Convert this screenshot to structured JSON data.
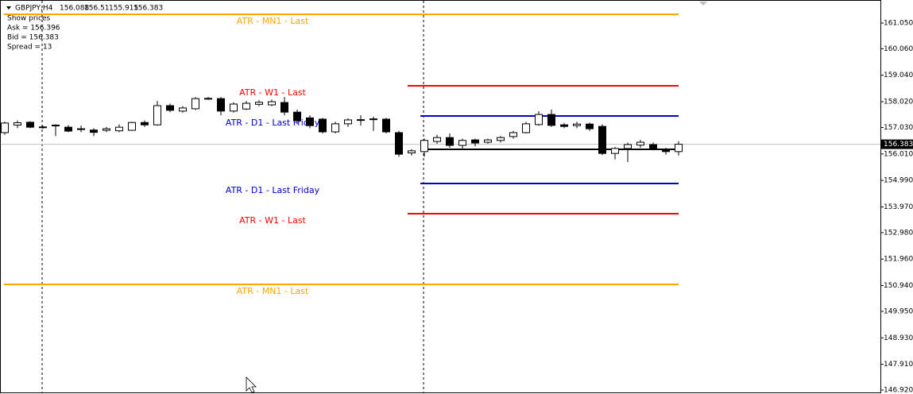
{
  "chart_data": {
    "type": "candlestick",
    "title": "GBPJPY,H4",
    "header_values": [
      156.088,
      156.51,
      155.915,
      156.383
    ],
    "info": [
      "Show prices",
      "Ask = 156.396",
      "Bid = 156.383",
      "Spread = 13"
    ],
    "categories": [
      null,
      null,
      null,
      null,
      null,
      null,
      null,
      null,
      null,
      null,
      null,
      null,
      null,
      null,
      null,
      null,
      null,
      null,
      null,
      null,
      null,
      null,
      null,
      null,
      null,
      null,
      null,
      null,
      null,
      null,
      null,
      null,
      null,
      null,
      null,
      null,
      null,
      null,
      null,
      null,
      null,
      null,
      null,
      null,
      null,
      null,
      null,
      null,
      null,
      null,
      null,
      null,
      null,
      null
    ],
    "open": [
      156.83,
      157.12,
      157.23,
      157.03,
      157.1,
      157.04,
      156.96,
      156.93,
      156.92,
      156.9,
      156.92,
      157.22,
      157.13,
      157.87,
      157.66,
      157.75,
      158.13,
      158.14,
      157.66,
      157.74,
      157.92,
      157.9,
      157.99,
      157.62,
      157.4,
      157.35,
      156.86,
      157.17,
      157.31,
      157.34,
      157.35,
      156.83,
      156.05,
      156.1,
      156.49,
      156.64,
      156.34,
      156.55,
      156.46,
      156.53,
      156.68,
      156.83,
      157.14,
      157.53,
      157.13,
      157.1,
      157.16,
      157.07,
      156.03,
      156.22,
      156.35,
      156.37,
      156.2,
      156.1
    ],
    "high": [
      157.25,
      157.3,
      157.27,
      157.1,
      157.15,
      157.12,
      157.1,
      157.0,
      157.05,
      157.15,
      157.25,
      157.3,
      158.05,
      157.95,
      157.85,
      158.2,
      158.2,
      158.2,
      158.0,
      158.05,
      158.08,
      158.1,
      158.2,
      157.72,
      157.5,
      157.4,
      157.25,
      157.38,
      157.5,
      157.45,
      157.4,
      156.9,
      156.2,
      156.6,
      156.75,
      156.8,
      156.6,
      156.6,
      156.6,
      156.7,
      156.9,
      157.25,
      157.65,
      157.72,
      157.2,
      157.25,
      157.22,
      157.15,
      156.28,
      156.45,
      156.55,
      156.45,
      156.25,
      156.5
    ],
    "low": [
      156.75,
      157.0,
      157.0,
      156.98,
      156.7,
      156.85,
      156.85,
      156.7,
      156.85,
      156.85,
      156.9,
      157.05,
      157.1,
      157.62,
      157.6,
      157.7,
      158.1,
      157.5,
      157.6,
      157.7,
      157.85,
      157.85,
      157.5,
      157.15,
      157.0,
      156.8,
      156.8,
      157.05,
      157.1,
      156.9,
      156.8,
      155.9,
      155.95,
      155.9,
      156.4,
      156.25,
      156.2,
      156.3,
      156.4,
      156.45,
      156.6,
      156.8,
      157.1,
      157.05,
      157.0,
      157.0,
      156.9,
      155.97,
      155.8,
      155.7,
      156.25,
      156.15,
      155.98,
      155.95
    ],
    "close": [
      157.2,
      157.21,
      157.04,
      157.05,
      157.12,
      156.89,
      156.98,
      156.84,
      156.98,
      157.04,
      157.22,
      157.13,
      157.87,
      157.69,
      157.78,
      158.14,
      158.15,
      157.66,
      157.93,
      157.96,
      158.0,
      158.02,
      157.62,
      157.29,
      157.1,
      156.86,
      157.17,
      157.32,
      157.33,
      157.36,
      156.86,
      156.0,
      156.13,
      156.53,
      156.64,
      156.34,
      156.53,
      156.43,
      156.55,
      156.64,
      156.83,
      157.17,
      157.53,
      157.11,
      157.07,
      157.16,
      156.98,
      156.03,
      156.22,
      156.37,
      156.46,
      156.19,
      156.1,
      156.383
    ],
    "levels": [
      {
        "name": "ATR - MN1 - Last",
        "color": "#ffa500",
        "upper": 161.386,
        "lower": 150.989
      },
      {
        "name": "ATR - W1 - Last",
        "color": "#ff0000",
        "upper": 158.634,
        "lower": 153.71
      },
      {
        "name": "ATR - D1 - Last Friday",
        "color": "#0000cd",
        "upper": 157.472,
        "lower": 154.873
      }
    ],
    "reference_line": 156.188,
    "last_price": {
      "value": 156.383,
      "label": "156.383"
    },
    "ylim": [
      146.767,
      161.937
    ],
    "yticks": [
      {
        "value": 161.05,
        "label": "161.050"
      },
      {
        "value": 160.06,
        "label": "160.060"
      },
      {
        "value": 159.04,
        "label": "159.040"
      },
      {
        "value": 158.02,
        "label": "158.020"
      },
      {
        "value": 157.03,
        "label": "157.030"
      },
      {
        "value": 156.01,
        "label": "156.010"
      },
      {
        "value": 154.99,
        "label": "154.990"
      },
      {
        "value": 153.97,
        "label": "153.970"
      },
      {
        "value": 152.98,
        "label": "152.980"
      },
      {
        "value": 151.96,
        "label": "151.960"
      },
      {
        "value": 150.94,
        "label": "150.940"
      },
      {
        "value": 149.95,
        "label": "149.950"
      },
      {
        "value": 148.93,
        "label": "148.930"
      },
      {
        "value": 147.91,
        "label": "147.910"
      },
      {
        "value": 146.92,
        "label": "146.920"
      }
    ],
    "bull_color": "#ffffff",
    "bear_color": "#000000"
  }
}
